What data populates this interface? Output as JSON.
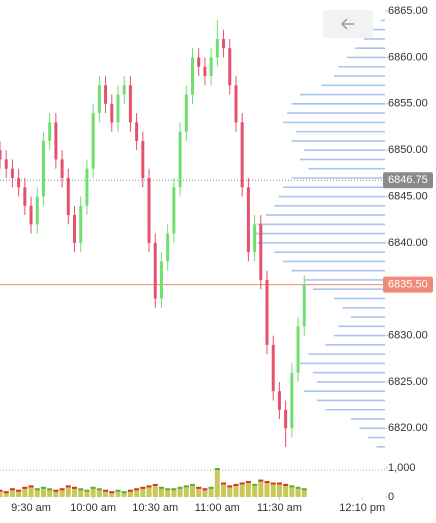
{
  "chart_data": {
    "type": "candlestick",
    "x": [
      555,
      558,
      561,
      564,
      567,
      570,
      573,
      576,
      579,
      582,
      585,
      588,
      591,
      594,
      597,
      600,
      603,
      606,
      609,
      612,
      615,
      618,
      621,
      624,
      627,
      630,
      633,
      636,
      639,
      642,
      645,
      648,
      651,
      654,
      657,
      660,
      663,
      666,
      669,
      672,
      675,
      678,
      681,
      684,
      687,
      690,
      693,
      696,
      699,
      702
    ],
    "open": [
      6850,
      6849,
      6848,
      6847,
      6846,
      6844,
      6842,
      6845,
      6851,
      6853,
      6849,
      6847,
      6843,
      6840,
      6844,
      6848,
      6854,
      6857,
      6855,
      6853,
      6856,
      6857,
      6853,
      6851,
      6847,
      6840,
      6834,
      6838,
      6841,
      6846,
      6852,
      6856,
      6860,
      6859,
      6858,
      6860,
      6862,
      6861,
      6857,
      6853,
      6846,
      6839,
      6842,
      6836,
      6829,
      6824,
      6822,
      6820,
      6826,
      6831
    ],
    "high": [
      6851,
      6850,
      6849,
      6848,
      6847,
      6845,
      6846,
      6852,
      6854,
      6854,
      6850,
      6848,
      6844,
      6845,
      6849,
      6855,
      6858,
      6858,
      6856,
      6857,
      6858,
      6858,
      6854,
      6852,
      6848,
      6841,
      6839,
      6842,
      6847,
      6853,
      6857,
      6861,
      6861,
      6860,
      6861,
      6864,
      6863,
      6862,
      6858,
      6854,
      6847,
      6843,
      6843,
      6837,
      6830,
      6825,
      6823,
      6827,
      6832,
      6836.5
    ],
    "low": [
      6848,
      6847,
      6846,
      6845,
      6843,
      6841,
      6841,
      6844,
      6850,
      6848,
      6846,
      6842,
      6839,
      6839,
      6843,
      6847,
      6853,
      6854,
      6852,
      6852,
      6855,
      6852,
      6850,
      6846,
      6839,
      6833,
      6833,
      6837,
      6840,
      6845,
      6851,
      6855,
      6858,
      6857,
      6857,
      6859,
      6860,
      6856,
      6852,
      6845,
      6838,
      6838,
      6835,
      6828,
      6823,
      6821,
      6818,
      6819,
      6825,
      6830
    ],
    "close": [
      6849,
      6848,
      6847,
      6846,
      6844,
      6842,
      6845,
      6851,
      6853,
      6849,
      6847,
      6843,
      6840,
      6844,
      6848,
      6854,
      6857,
      6855,
      6853,
      6856,
      6857,
      6853,
      6851,
      6847,
      6840,
      6834,
      6838,
      6841,
      6846,
      6852,
      6856,
      6860,
      6859,
      6858,
      6860,
      6862,
      6861,
      6857,
      6853,
      6846,
      6839,
      6842,
      6836,
      6829,
      6824,
      6822,
      6820,
      6826,
      6831,
      6835.5
    ],
    "volume": [
      250,
      200,
      300,
      250,
      350,
      400,
      300,
      350,
      300,
      250,
      300,
      400,
      350,
      300,
      250,
      350,
      300,
      250,
      200,
      250,
      200,
      250,
      300,
      350,
      400,
      450,
      350,
      300,
      300,
      350,
      400,
      450,
      350,
      300,
      350,
      1000,
      500,
      400,
      450,
      500,
      550,
      450,
      600,
      550,
      500,
      500,
      450,
      400,
      350,
      300
    ],
    "up_color": "#6fe06f",
    "down_color": "#e5506c",
    "volume_color": "#c9c95a",
    "xlim": [
      555,
      741
    ],
    "xticks": [
      {
        "value": 570,
        "label": "9:30 am"
      },
      {
        "value": 600,
        "label": "10:00 am"
      },
      {
        "value": 630,
        "label": "10:30 am"
      },
      {
        "value": 660,
        "label": "11:00 am"
      },
      {
        "value": 690,
        "label": "11:30 am"
      },
      {
        "value": 730,
        "label": "12:10 pm"
      }
    ],
    "ylim": [
      6815.5,
      6866.2
    ],
    "yticks": [
      {
        "value": 6820,
        "label": "6820.00"
      },
      {
        "value": 6825,
        "label": "6825.00"
      },
      {
        "value": 6830,
        "label": "6830.00"
      },
      {
        "value": 6835,
        "label": "6835.00"
      },
      {
        "value": 6840,
        "label": "6840.00"
      },
      {
        "value": 6845,
        "label": "6845.00"
      },
      {
        "value": 6850,
        "label": "6850.00"
      },
      {
        "value": 6855,
        "label": "6855.00"
      },
      {
        "value": 6860,
        "label": "6860.00"
      },
      {
        "value": 6865,
        "label": "6865.00"
      }
    ],
    "volume_ylim": [
      0,
      1000
    ],
    "volume_yticks": [
      0,
      {
        "value": 1000,
        "label": "1,000"
      }
    ],
    "last_price": {
      "value": 6835.5,
      "label": "6835.50"
    },
    "last_price_color": "#f08a78",
    "ref_price": {
      "value": 6846.75,
      "label": "6846.75"
    },
    "ref_price_color": "#8a8a8a",
    "profile": {
      "color": "#a9c4ee",
      "prices": [
        6864,
        6863,
        6862,
        6861,
        6860,
        6859,
        6858,
        6857,
        6856,
        6855,
        6854,
        6853,
        6852,
        6851,
        6850,
        6849,
        6848,
        6847,
        6846,
        6845,
        6844,
        6843,
        6842,
        6841,
        6840,
        6839,
        6838,
        6837,
        6836,
        6835,
        6834,
        6833,
        6832,
        6831,
        6830,
        6829,
        6828,
        6827,
        6826,
        6825,
        6824,
        6823,
        6822,
        6821,
        6820,
        6819,
        6818
      ],
      "values": [
        5,
        15,
        25,
        35,
        45,
        55,
        60,
        75,
        100,
        110,
        115,
        120,
        105,
        110,
        95,
        100,
        90,
        110,
        120,
        125,
        130,
        140,
        150,
        155,
        150,
        130,
        120,
        110,
        95,
        85,
        60,
        50,
        40,
        55,
        60,
        70,
        90,
        100,
        85,
        80,
        95,
        80,
        70,
        40,
        30,
        20,
        10
      ]
    }
  }
}
